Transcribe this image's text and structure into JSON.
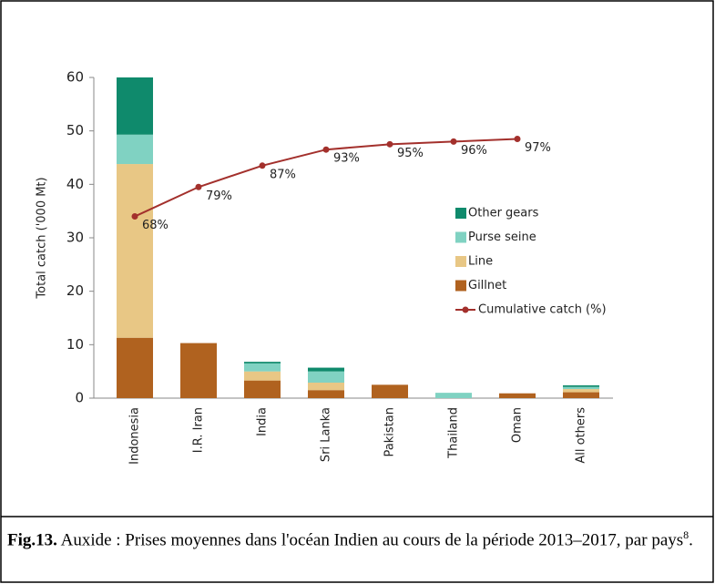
{
  "chart_data": {
    "type": "bar",
    "stacked": true,
    "ylabel": "Total catch ('000 Mt)",
    "categories": [
      "Indonesia",
      "I.R. Iran",
      "India",
      "Sri Lanka",
      "Pakistan",
      "Thailand",
      "Oman",
      "All others"
    ],
    "series": [
      {
        "name": "Gillnet",
        "color": "#b0621f",
        "values": [
          11.3,
          10.3,
          3.3,
          1.5,
          2.5,
          0,
          0.9,
          1.1
        ]
      },
      {
        "name": "Line",
        "color": "#e8c785",
        "values": [
          32.5,
          0,
          1.7,
          1.4,
          0,
          0,
          0,
          0.6
        ]
      },
      {
        "name": "Purse seine",
        "color": "#80d2c2",
        "values": [
          5.5,
          0,
          1.5,
          2.1,
          0,
          1.0,
          0,
          0.4
        ]
      },
      {
        "name": "Other gears",
        "color": "#0f8a6c",
        "values": [
          10.7,
          0,
          0.3,
          0.7,
          0,
          0,
          0,
          0.3
        ]
      },
      {
        "name": "Cumulative catch (%)",
        "type": "line",
        "axis": "y2",
        "color": "#a3302c",
        "values": [
          68,
          79,
          87,
          93,
          95,
          96,
          97,
          null
        ],
        "value_labels": [
          "68%",
          "79%",
          "87%",
          "93%",
          "95%",
          "96%",
          "97%",
          null
        ]
      }
    ],
    "ylim": [
      0,
      60
    ],
    "yticks": [
      0,
      10,
      20,
      30,
      40,
      50,
      60
    ],
    "y2lim": [
      0,
      120
    ],
    "legend": "right"
  },
  "caption": {
    "label": "Fig.13.",
    "text": " Auxide : Prises moyennes dans l'océan Indien au cours de la période 2013–2017, par pays",
    "sup": "8",
    "end": "."
  }
}
